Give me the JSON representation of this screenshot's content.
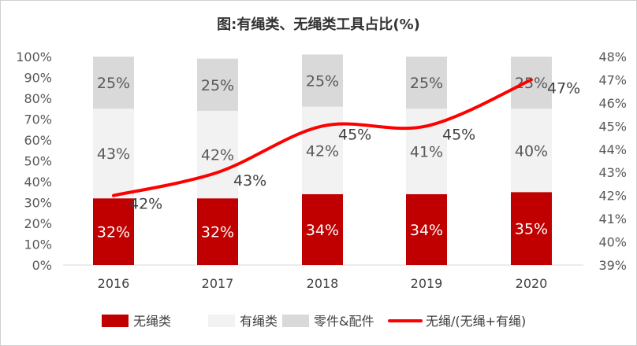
{
  "chart_data": {
    "type": "bar",
    "stacked": true,
    "title": "图:有绳类、无绳类工具占比(%)",
    "categories": [
      "2016",
      "2017",
      "2018",
      "2019",
      "2020"
    ],
    "series": [
      {
        "name": "无绳类",
        "kind": "bar",
        "color": "#c00000",
        "values": [
          32,
          32,
          34,
          34,
          35
        ],
        "labels": [
          "32%",
          "32%",
          "34%",
          "34%",
          "35%"
        ]
      },
      {
        "name": "有绳类",
        "kind": "bar",
        "color": "#f2f2f2",
        "values": [
          43,
          42,
          42,
          41,
          40
        ],
        "labels": [
          "43%",
          "42%",
          "42%",
          "41%",
          "40%"
        ]
      },
      {
        "name": "零件&配件",
        "kind": "bar",
        "color": "#d9d9d9",
        "values": [
          25,
          25,
          25,
          25,
          25
        ],
        "labels": [
          "25%",
          "25%",
          "25%",
          "25%",
          "25%"
        ]
      },
      {
        "name": "无绳/(无绳+有绳)",
        "kind": "line",
        "axis": "right",
        "color": "#ff0000",
        "values": [
          42,
          43,
          45,
          45,
          47
        ],
        "labels": [
          "42%",
          "43%",
          "45%",
          "45%",
          "47%"
        ]
      }
    ],
    "y_left": {
      "range": [
        0,
        100
      ],
      "ticks": [
        "0%",
        "10%",
        "20%",
        "30%",
        "40%",
        "50%",
        "60%",
        "70%",
        "80%",
        "90%",
        "100%"
      ]
    },
    "y_right": {
      "range": [
        39,
        48
      ],
      "ticks": [
        "39%",
        "40%",
        "41%",
        "42%",
        "43%",
        "44%",
        "45%",
        "46%",
        "47%",
        "48%"
      ]
    },
    "grid": false,
    "legend": "bottom"
  }
}
